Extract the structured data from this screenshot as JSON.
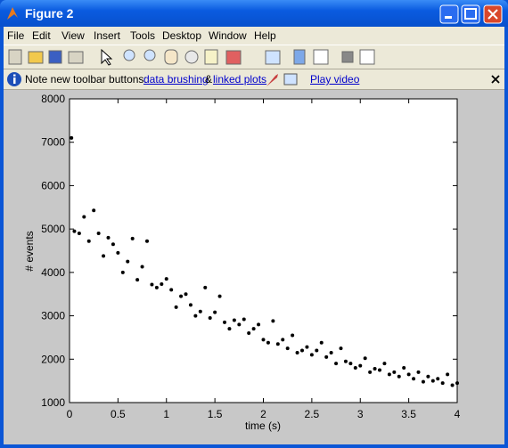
{
  "window": {
    "title": "Figure 2",
    "menu": [
      "File",
      "Edit",
      "View",
      "Insert",
      "Tools",
      "Desktop",
      "Window",
      "Help"
    ]
  },
  "infobar": {
    "note": "Note new toolbar buttons:",
    "link1": "data brushing",
    "amp": "&",
    "link2": "linked plots",
    "video": "Play video"
  },
  "chart_data": {
    "type": "scatter",
    "xlabel": "time (s)",
    "ylabel": "# events",
    "color": "#000000",
    "x": [
      0.02,
      0.05,
      0.1,
      0.15,
      0.2,
      0.25,
      0.3,
      0.35,
      0.4,
      0.45,
      0.5,
      0.55,
      0.6,
      0.65,
      0.7,
      0.75,
      0.8,
      0.85,
      0.9,
      0.95,
      1.0,
      1.05,
      1.1,
      1.15,
      1.2,
      1.25,
      1.3,
      1.35,
      1.4,
      1.45,
      1.5,
      1.55,
      1.6,
      1.65,
      1.7,
      1.75,
      1.8,
      1.85,
      1.9,
      1.95,
      2.0,
      2.05,
      2.1,
      2.15,
      2.2,
      2.25,
      2.3,
      2.35,
      2.4,
      2.45,
      2.5,
      2.55,
      2.6,
      2.65,
      2.7,
      2.75,
      2.8,
      2.85,
      2.9,
      2.95,
      3.0,
      3.05,
      3.1,
      3.15,
      3.2,
      3.25,
      3.3,
      3.35,
      3.4,
      3.45,
      3.5,
      3.55,
      3.6,
      3.65,
      3.7,
      3.75,
      3.8,
      3.85,
      3.9,
      3.95,
      4.0
    ],
    "values": [
      7100,
      4950,
      4900,
      5280,
      4720,
      5430,
      4900,
      4380,
      4800,
      4650,
      4450,
      4000,
      4250,
      4780,
      3830,
      4130,
      4720,
      3720,
      3650,
      3730,
      3850,
      3600,
      3200,
      3450,
      3500,
      3250,
      3000,
      3100,
      3650,
      2950,
      3080,
      3450,
      2850,
      2700,
      2900,
      2800,
      2920,
      2600,
      2700,
      2800,
      2450,
      2380,
      2880,
      2350,
      2450,
      2250,
      2550,
      2150,
      2200,
      2280,
      2100,
      2200,
      2380,
      2050,
      2150,
      1900,
      2250,
      1950,
      1900,
      1800,
      1850,
      2020,
      1700,
      1780,
      1750,
      1900,
      1650,
      1700,
      1600,
      1800,
      1650,
      1550,
      1700,
      1480,
      1600,
      1500,
      1550,
      1450,
      1650,
      1400,
      1450
    ],
    "xlim": [
      0,
      4
    ],
    "ylim": [
      1000,
      8000
    ],
    "xticks": [
      0,
      0.5,
      1,
      1.5,
      2,
      2.5,
      3,
      3.5,
      4
    ],
    "yticks": [
      1000,
      2000,
      3000,
      4000,
      5000,
      6000,
      7000,
      8000
    ]
  }
}
